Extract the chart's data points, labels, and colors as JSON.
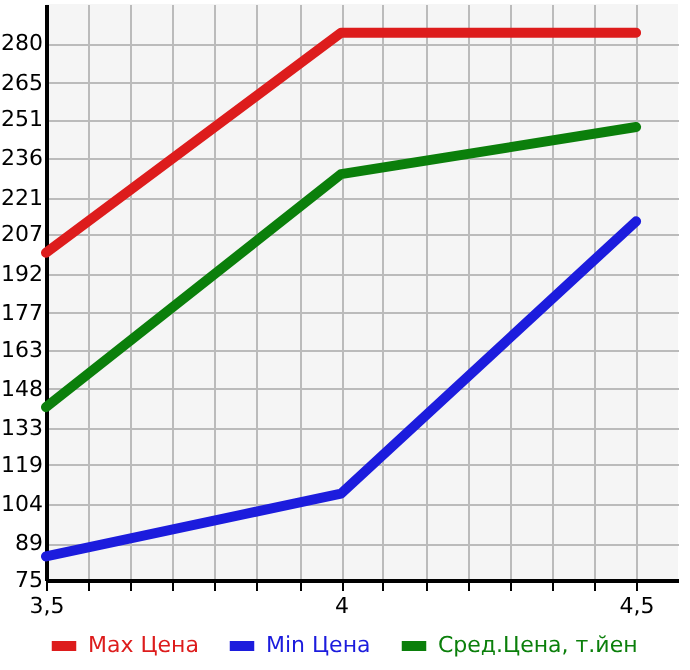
{
  "chart_data": {
    "type": "line",
    "x": [
      3.5,
      4,
      4.5
    ],
    "series": [
      {
        "name": "Max Цена",
        "color": "#dd1c1c",
        "values": [
          200,
          284,
          284
        ]
      },
      {
        "name": "Min Цена",
        "color": "#1c1cdd",
        "values": [
          84,
          108,
          212
        ]
      },
      {
        "name": "Сред.Цена, т.йен",
        "color": "#0b7f0b",
        "values": [
          141,
          230,
          248
        ]
      }
    ],
    "xlim": [
      3.5,
      4.571
    ],
    "xticks": [
      {
        "value": 3.5,
        "label": "3,5"
      },
      {
        "value": 3.571,
        "label": null
      },
      {
        "value": 3.643,
        "label": null
      },
      {
        "value": 3.714,
        "label": null
      },
      {
        "value": 3.786,
        "label": null
      },
      {
        "value": 3.857,
        "label": null
      },
      {
        "value": 3.929,
        "label": null
      },
      4,
      {
        "value": 4.071,
        "label": null
      },
      {
        "value": 4.143,
        "label": null
      },
      {
        "value": 4.214,
        "label": null
      },
      {
        "value": 4.286,
        "label": null
      },
      {
        "value": 4.357,
        "label": null
      },
      {
        "value": 4.429,
        "label": null
      },
      {
        "value": 4.5,
        "label": "4,5"
      }
    ],
    "ylim": [
      75,
      295
    ],
    "yticks": [
      75,
      89,
      104,
      119,
      133,
      148,
      163,
      177,
      192,
      207,
      221,
      236,
      251,
      265,
      280
    ],
    "grid": true,
    "legend": "bottom",
    "marker": "none",
    "line_style": "solid"
  }
}
